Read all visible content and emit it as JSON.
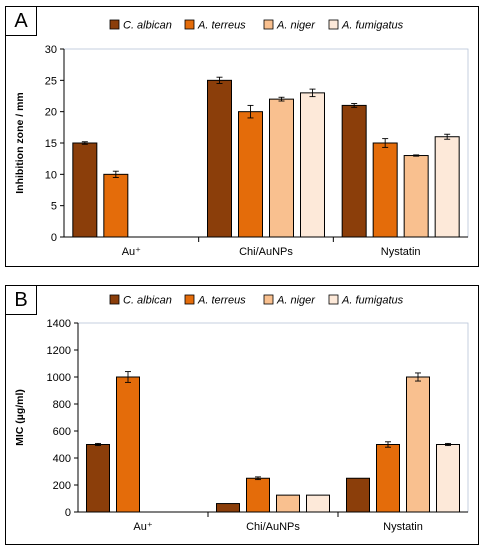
{
  "panels": [
    {
      "letter": "A"
    },
    {
      "letter": "B"
    }
  ],
  "chart_data": [
    {
      "type": "bar",
      "ylabel": "Inhibition zone / mm",
      "xlabel": "",
      "ylim": [
        0,
        30
      ],
      "yticks": [
        0,
        5,
        10,
        15,
        20,
        25,
        30
      ],
      "grid": false,
      "legend_position": "top",
      "categories": [
        "Au⁺",
        "Chi/AuNPs",
        "Nystatin"
      ],
      "series": [
        {
          "name": "C. albican",
          "color": "#8b3e0a",
          "values": [
            15,
            25,
            21
          ],
          "errors": [
            0.2,
            0.5,
            0.3
          ]
        },
        {
          "name": "A. terreus",
          "color": "#e46c0a",
          "values": [
            10,
            20,
            15
          ],
          "errors": [
            0.5,
            1.0,
            0.7
          ]
        },
        {
          "name": "A. niger",
          "color": "#f9c08f",
          "values": [
            null,
            22,
            13
          ],
          "errors": [
            0,
            0.3,
            0.1
          ]
        },
        {
          "name": "A. fumigatus",
          "color": "#fde9d9",
          "values": [
            null,
            23,
            16
          ],
          "errors": [
            0,
            0.6,
            0.4
          ]
        }
      ]
    },
    {
      "type": "bar",
      "ylabel": "MIC (µg/ml)",
      "xlabel": "",
      "ylim": [
        0,
        1400
      ],
      "yticks": [
        0,
        200,
        400,
        600,
        800,
        1000,
        1200,
        1400
      ],
      "grid": false,
      "legend_position": "top",
      "categories": [
        "Au⁺",
        "Chi/AuNPs",
        "Nystatin"
      ],
      "series": [
        {
          "name": "C. albican",
          "color": "#8b3e0a",
          "values": [
            500,
            62.5,
            250
          ],
          "errors": [
            8,
            0,
            0
          ]
        },
        {
          "name": "A. terreus",
          "color": "#e46c0a",
          "values": [
            1000,
            250,
            500
          ],
          "errors": [
            40,
            10,
            20
          ]
        },
        {
          "name": "A. niger",
          "color": "#f9c08f",
          "values": [
            null,
            125,
            1000
          ],
          "errors": [
            0,
            0,
            30
          ]
        },
        {
          "name": "A. fumigatus",
          "color": "#fde9d9",
          "values": [
            null,
            125,
            500
          ],
          "errors": [
            0,
            0,
            8
          ]
        }
      ]
    }
  ]
}
